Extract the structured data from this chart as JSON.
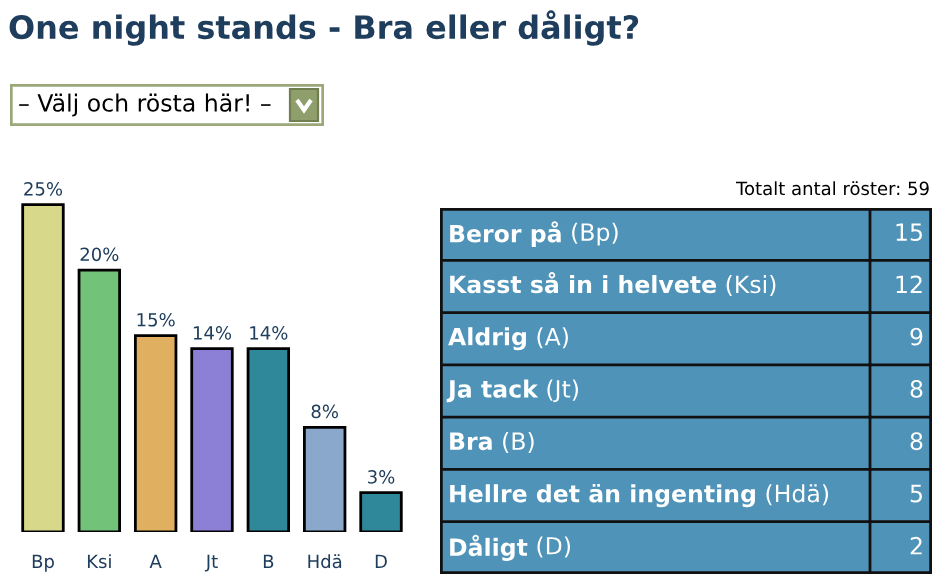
{
  "chart_data": [
    {
      "type": "bar",
      "title": "One night stands - Bra eller dåligt?",
      "annotations": [
        "– Välj och rösta här! –"
      ],
      "categories": [
        "Bp",
        "Ksi",
        "A",
        "Jt",
        "B",
        "Hdä",
        "D"
      ],
      "values": [
        25,
        20,
        15,
        14,
        14,
        8,
        3
      ],
      "value_labels": [
        "25%",
        "20%",
        "15%",
        "14%",
        "14%",
        "8%",
        "3%"
      ],
      "colors": [
        "#d8d88a",
        "#72c27a",
        "#e0b060",
        "#8b7fd6",
        "#2f879a",
        "#8aa8cc",
        "#2f879a"
      ]
    },
    {
      "type": "other",
      "title": "Totalt antal röster: 59",
      "categories": [
        "Beror på (Bp)",
        "Kasst så in i helvete (Ksi)",
        "Aldrig (A)",
        "Ja tack (Jt)",
        "Bra (B)",
        "Hellre det än ingenting (Hdä)",
        "Dåligt (D)"
      ],
      "values": [
        15,
        12,
        9,
        8,
        8,
        5,
        2
      ],
      "data_labels": true
    }
  ]
}
